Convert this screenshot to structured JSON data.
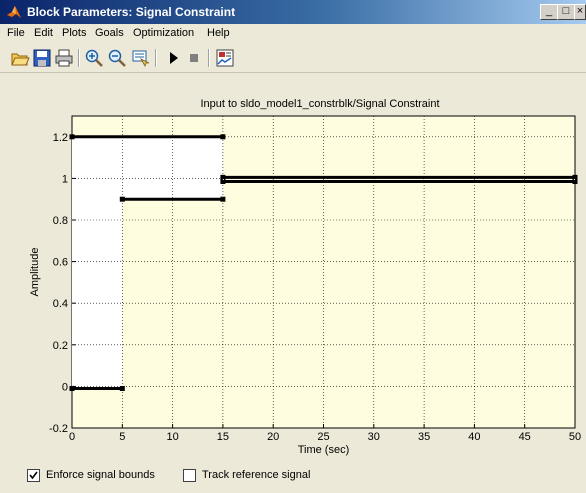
{
  "window": {
    "title": "Block Parameters: Signal Constraint",
    "minimize": "_",
    "maximize": "□",
    "close": "×"
  },
  "menu": [
    "File",
    "Edit",
    "Plots",
    "Goals",
    "Optimization",
    "Help"
  ],
  "toolbar": {
    "icons": [
      "open-icon",
      "save-icon",
      "print-icon",
      "zoom-in-icon",
      "zoom-out-icon",
      "pan-icon",
      "play-icon",
      "stop-icon",
      "plot-settings-icon"
    ]
  },
  "chart_data": {
    "type": "line",
    "title": "Input to sldo_model1_constrblk/Signal Constraint",
    "xlabel": "Time (sec)",
    "ylabel": "Amplitude",
    "xlim": [
      0,
      50
    ],
    "ylim": [
      -0.2,
      1.3
    ],
    "xticks": [
      "0",
      "5",
      "10",
      "15",
      "20",
      "25",
      "30",
      "35",
      "40",
      "45",
      "50"
    ],
    "yticks": [
      "-0.2",
      "0",
      "0.2",
      "0.4",
      "0.6",
      "0.8",
      "1",
      "1.2"
    ],
    "grid": true,
    "upper_bound": [
      {
        "x": [
          0,
          15
        ],
        "y": [
          1.2,
          1.2
        ]
      },
      {
        "x": [
          15,
          50
        ],
        "y": [
          1.005,
          1.005
        ]
      }
    ],
    "lower_bound": [
      {
        "x": [
          0,
          5
        ],
        "y": [
          -0.01,
          -0.01
        ]
      },
      {
        "x": [
          5,
          15
        ],
        "y": [
          0.9,
          0.9
        ]
      },
      {
        "x": [
          15,
          50
        ],
        "y": [
          0.985,
          0.985
        ]
      }
    ],
    "colors": {
      "bound": "#000000",
      "feasible": "#ffffff",
      "infeasible": "#fffde0",
      "grid": "#000000"
    }
  },
  "checkboxes": [
    {
      "label": "Enforce signal bounds",
      "checked": true
    },
    {
      "label": "Track reference signal",
      "checked": false
    }
  ]
}
